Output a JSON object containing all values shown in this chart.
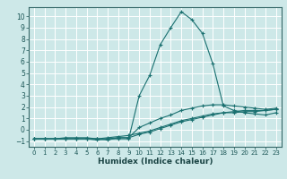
{
  "xlabel": "Humidex (Indice chaleur)",
  "xlim": [
    -0.5,
    23.5
  ],
  "ylim": [
    -1.5,
    10.8
  ],
  "xticks": [
    0,
    1,
    2,
    3,
    4,
    5,
    6,
    7,
    8,
    9,
    10,
    11,
    12,
    13,
    14,
    15,
    16,
    17,
    18,
    19,
    20,
    21,
    22,
    23
  ],
  "yticks": [
    -1,
    0,
    1,
    2,
    3,
    4,
    5,
    6,
    7,
    8,
    9,
    10
  ],
  "background_color": "#cde8e8",
  "grid_color": "#ffffff",
  "line_color": "#1a7070",
  "curve1_x": [
    0,
    1,
    2,
    3,
    4,
    5,
    6,
    7,
    8,
    9,
    10,
    11,
    12,
    13,
    14,
    15,
    16,
    17,
    18,
    19,
    20,
    21,
    22,
    23
  ],
  "curve1_y": [
    -0.8,
    -0.8,
    -0.8,
    -0.8,
    -0.8,
    -0.8,
    -0.9,
    -0.8,
    -0.8,
    -0.8,
    3.0,
    4.8,
    7.5,
    9.0,
    10.4,
    9.7,
    8.5,
    5.8,
    2.1,
    1.7,
    1.5,
    1.4,
    1.3,
    1.5
  ],
  "curve2_x": [
    0,
    1,
    2,
    3,
    4,
    5,
    6,
    7,
    8,
    9,
    10,
    11,
    12,
    13,
    14,
    15,
    16,
    17,
    18,
    19,
    20,
    21,
    22,
    23
  ],
  "curve2_y": [
    -0.8,
    -0.8,
    -0.8,
    -0.7,
    -0.7,
    -0.7,
    -0.8,
    -0.7,
    -0.6,
    -0.5,
    -0.3,
    -0.1,
    0.2,
    0.5,
    0.8,
    1.0,
    1.2,
    1.4,
    1.5,
    1.6,
    1.7,
    1.7,
    1.7,
    1.8
  ],
  "curve3_x": [
    0,
    1,
    2,
    3,
    4,
    5,
    6,
    7,
    8,
    9,
    10,
    11,
    12,
    13,
    14,
    15,
    16,
    17,
    18,
    19,
    20,
    21,
    22,
    23
  ],
  "curve3_y": [
    -0.8,
    -0.8,
    -0.8,
    -0.8,
    -0.8,
    -0.8,
    -0.8,
    -0.8,
    -0.7,
    -0.7,
    -0.4,
    -0.2,
    0.1,
    0.4,
    0.7,
    0.9,
    1.1,
    1.3,
    1.5,
    1.5,
    1.6,
    1.6,
    1.7,
    1.8
  ],
  "curve4_x": [
    0,
    1,
    2,
    3,
    4,
    5,
    6,
    7,
    8,
    9,
    10,
    11,
    12,
    13,
    14,
    15,
    16,
    17,
    18,
    19,
    20,
    21,
    22,
    23
  ],
  "curve4_y": [
    -0.8,
    -0.8,
    -0.8,
    -0.8,
    -0.8,
    -0.8,
    -0.8,
    -0.9,
    -0.7,
    -0.7,
    0.2,
    0.6,
    1.0,
    1.3,
    1.7,
    1.9,
    2.1,
    2.2,
    2.2,
    2.1,
    2.0,
    1.9,
    1.8,
    1.9
  ]
}
